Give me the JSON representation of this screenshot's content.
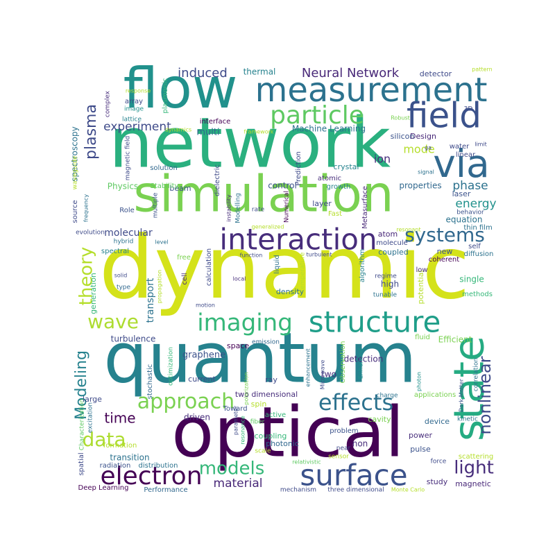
{
  "palette": {
    "dark_purple": "#440154",
    "indigo": "#3e4a89",
    "blue": "#31688e",
    "teal": "#26828e",
    "green": "#1f9e89",
    "bright_green": "#35b779",
    "lime": "#6ece58",
    "yellow_green": "#b5de2b",
    "yellow": "#fde725"
  },
  "words": [
    {
      "text": "dynamic",
      "color": "#d4e21a"
    },
    {
      "text": "network",
      "color": "#2ab07f"
    },
    {
      "text": "quantum",
      "color": "#26828e"
    },
    {
      "text": "optical",
      "color": "#440154"
    },
    {
      "text": "simulation",
      "color": "#7ad151"
    },
    {
      "text": "flow",
      "color": "#21918c"
    },
    {
      "text": "measurement",
      "color": "#2c728e"
    },
    {
      "text": "field",
      "color": "#3b528b"
    },
    {
      "text": "via",
      "color": "#31688e"
    },
    {
      "text": "particle",
      "color": "#5ec962"
    },
    {
      "text": "interaction",
      "color": "#472d7b"
    },
    {
      "text": "structure",
      "color": "#1f9e89"
    },
    {
      "text": "state",
      "color": "#25ab82"
    },
    {
      "text": "surface",
      "color": "#3b528b"
    },
    {
      "text": "imaging",
      "color": "#35b779"
    },
    {
      "text": "electron",
      "color": "#440154"
    },
    {
      "text": "effects",
      "color": "#2c728e"
    },
    {
      "text": "approach",
      "color": "#7ad151"
    },
    {
      "text": "wave",
      "color": "#addc30"
    },
    {
      "text": "theory",
      "color": "#b5de2b"
    },
    {
      "text": "data",
      "color": "#addc30"
    },
    {
      "text": "systems",
      "color": "#31688e"
    },
    {
      "text": "models",
      "color": "#35b779"
    },
    {
      "text": "light",
      "color": "#472d7b"
    },
    {
      "text": "nonlinear",
      "color": "#3e4a89"
    },
    {
      "text": "Modeling",
      "color": "#26828e"
    },
    {
      "text": "plasma",
      "color": "#3e4a89"
    },
    {
      "text": "time",
      "color": "#440154"
    },
    {
      "text": "Neural Network",
      "color": "#482878"
    },
    {
      "text": "induced",
      "color": "#3e4a89"
    },
    {
      "text": "phase",
      "color": "#2c728e"
    },
    {
      "text": "energy",
      "color": "#21918c"
    },
    {
      "text": "experiment",
      "color": "#3e4a89"
    },
    {
      "text": "material",
      "color": "#482878"
    },
    {
      "text": "mode",
      "color": "#b5de2b"
    },
    {
      "text": "ion",
      "color": "#472d7b"
    },
    {
      "text": "spectroscopy",
      "color": "#2c728e"
    },
    {
      "text": "molecular",
      "color": "#3e4a89"
    },
    {
      "text": "transport",
      "color": "#2c728e"
    },
    {
      "text": "turbulence",
      "color": "#3e4a89"
    },
    {
      "text": "graphene",
      "color": "#3b528b"
    },
    {
      "text": "detection",
      "color": "#472d7b"
    },
    {
      "text": "Efficient",
      "color": "#7ad151"
    },
    {
      "text": "multi",
      "color": "#31688e"
    },
    {
      "text": "thermal",
      "color": "#26828e"
    },
    {
      "text": "detector",
      "color": "#3e4a89"
    },
    {
      "text": "Machine Learning",
      "color": "#2c728e"
    },
    {
      "text": "Physics",
      "color": "#5ec962"
    },
    {
      "text": "Design",
      "color": "#482878"
    },
    {
      "text": "beam",
      "color": "#3b528b"
    },
    {
      "text": "control",
      "color": "#3b528b"
    },
    {
      "text": "properties",
      "color": "#31688e"
    },
    {
      "text": "equation",
      "color": "#2c728e"
    },
    {
      "text": "atom",
      "color": "#482878"
    },
    {
      "text": "single",
      "color": "#35b779"
    },
    {
      "text": "high",
      "color": "#3e4a89"
    },
    {
      "text": "potential",
      "color": "#b5de2b"
    },
    {
      "text": "generation",
      "color": "#35b779"
    },
    {
      "text": "new",
      "color": "#3b528b"
    },
    {
      "text": "two",
      "color": "#472d7b"
    },
    {
      "text": "spin",
      "color": "#b5de2b"
    },
    {
      "text": "transition",
      "color": "#2c728e"
    },
    {
      "text": "magnetic",
      "color": "#482878"
    },
    {
      "text": "study",
      "color": "#472d7b"
    },
    {
      "text": "current",
      "color": "#3e4a89"
    },
    {
      "text": "ray",
      "color": "#3e4a89"
    },
    {
      "text": "two dimensional",
      "color": "#472d7b"
    },
    {
      "text": "coupling",
      "color": "#35b779"
    },
    {
      "text": "photonic",
      "color": "#31688e"
    },
    {
      "text": "power",
      "color": "#472d7b"
    },
    {
      "text": "pulse",
      "color": "#3b528b"
    },
    {
      "text": "cavity",
      "color": "#7ad151"
    },
    {
      "text": "device",
      "color": "#31688e"
    },
    {
      "text": "driven",
      "color": "#472d7b"
    },
    {
      "text": "large",
      "color": "#3e4a89"
    },
    {
      "text": "non",
      "color": "#472d7b"
    },
    {
      "text": "coupled",
      "color": "#2c728e"
    },
    {
      "text": "coherent",
      "color": "#440154"
    },
    {
      "text": "diffusion",
      "color": "#2c728e"
    },
    {
      "text": "self",
      "color": "#3e4a89"
    },
    {
      "text": "methods",
      "color": "#35b779"
    },
    {
      "text": "density",
      "color": "#2c728e"
    },
    {
      "text": "space",
      "color": "#440154"
    },
    {
      "text": "fluid",
      "color": "#7ad151"
    },
    {
      "text": "laser",
      "color": "#3b528b"
    },
    {
      "text": "layer",
      "color": "#3e4a89"
    },
    {
      "text": "growth",
      "color": "#26828e"
    },
    {
      "text": "crystal",
      "color": "#26828e"
    },
    {
      "text": "silicon",
      "color": "#3b528b"
    },
    {
      "text": "water",
      "color": "#3e4a89"
    },
    {
      "text": "linear",
      "color": "#3e4a89"
    },
    {
      "text": "solution",
      "color": "#31688e"
    },
    {
      "text": "interface",
      "color": "#440154"
    },
    {
      "text": "array",
      "color": "#3e4a89"
    },
    {
      "text": "complex",
      "color": "#472d7b"
    },
    {
      "text": "lattice",
      "color": "#26828e"
    },
    {
      "text": "image",
      "color": "#21918c"
    },
    {
      "text": "Stability",
      "color": "#5ec962"
    },
    {
      "text": "Role",
      "color": "#3b528b"
    },
    {
      "text": "evolution",
      "color": "#3e4a89"
    },
    {
      "text": "source",
      "color": "#3e4a89"
    },
    {
      "text": "frequency",
      "color": "#2c728e"
    },
    {
      "text": "waveguide",
      "color": "#b5de2b"
    },
    {
      "text": "magnetic field",
      "color": "#3e4a89"
    },
    {
      "text": "plasmonic",
      "color": "#35b779"
    },
    {
      "text": "dielectric",
      "color": "#3e4a89"
    },
    {
      "text": "instability",
      "color": "#472d7b"
    },
    {
      "text": "Modelling",
      "color": "#2c728e"
    },
    {
      "text": "multiple",
      "color": "#3b528b"
    },
    {
      "text": "Numerical",
      "color": "#440154"
    },
    {
      "text": "Prediction",
      "color": "#3e4a89"
    },
    {
      "text": "Metasurface",
      "color": "#482878"
    },
    {
      "text": "atomic",
      "color": "#472d7b"
    },
    {
      "text": "Fast",
      "color": "#b5de2b"
    },
    {
      "text": "rate",
      "color": "#3e4a89"
    },
    {
      "text": "generalized",
      "color": "#b5de2b"
    },
    {
      "text": "molecule",
      "color": "#3e4a89"
    },
    {
      "text": "resonant",
      "color": "#b5de2b"
    },
    {
      "text": "behavior",
      "color": "#3b528b"
    },
    {
      "text": "thin film",
      "color": "#2c728e"
    },
    {
      "text": "free",
      "color": "#7ad151"
    },
    {
      "text": "hybrid",
      "color": "#2c728e"
    },
    {
      "text": "level",
      "color": "#2c728e"
    },
    {
      "text": "spectral",
      "color": "#26828e"
    },
    {
      "text": "solid",
      "color": "#3e4a89"
    },
    {
      "text": "type",
      "color": "#31688e"
    },
    {
      "text": "cell",
      "color": "#472d7b"
    },
    {
      "text": "calculation",
      "color": "#3e4a89"
    },
    {
      "text": "liquid",
      "color": "#2c728e"
    },
    {
      "text": "temperature",
      "color": "#b5de2b"
    },
    {
      "text": "algorithm",
      "color": "#26828e"
    },
    {
      "text": "function",
      "color": "#3e4a89"
    },
    {
      "text": "turbulent",
      "color": "#3e4a89"
    },
    {
      "text": "local",
      "color": "#472d7b"
    },
    {
      "text": "regime",
      "color": "#3e4a89"
    },
    {
      "text": "tunable",
      "color": "#2c728e"
    },
    {
      "text": "low",
      "color": "#472d7b"
    },
    {
      "text": "Observation",
      "color": "#7ad151"
    },
    {
      "text": "Enhanced",
      "color": "#21918c"
    },
    {
      "text": "enhancement",
      "color": "#2c728e"
    },
    {
      "text": "Microwave",
      "color": "#3e4a89"
    },
    {
      "text": "emission",
      "color": "#31688e"
    },
    {
      "text": "polarization",
      "color": "#7ad151"
    },
    {
      "text": "charge",
      "color": "#2c728e"
    },
    {
      "text": "Characterization",
      "color": "#5ec962"
    },
    {
      "text": "excitation",
      "color": "#2c728e"
    },
    {
      "text": "stochastic",
      "color": "#31688e"
    },
    {
      "text": "optimization",
      "color": "#35b779"
    },
    {
      "text": "propagation",
      "color": "#b5de2b"
    },
    {
      "text": "motion",
      "color": "#3e4a89"
    },
    {
      "text": "formation",
      "color": "#b5de2b"
    },
    {
      "text": "spatial",
      "color": "#3e4a89"
    },
    {
      "text": "radiation",
      "color": "#3b528b"
    },
    {
      "text": "distribution",
      "color": "#2c728e"
    },
    {
      "text": "Deep Learning",
      "color": "#440154"
    },
    {
      "text": "Performance",
      "color": "#31688e"
    },
    {
      "text": "mechanism",
      "color": "#3e4a89"
    },
    {
      "text": "three dimensional",
      "color": "#3e4a89"
    },
    {
      "text": "Monte Carlo",
      "color": "#b5de2b"
    },
    {
      "text": "ga",
      "color": "#3e4a89"
    },
    {
      "text": "scale",
      "color": "#b5de2b"
    },
    {
      "text": "resonance",
      "color": "#35b779"
    },
    {
      "text": "parameter",
      "color": "#3e4a89"
    },
    {
      "text": "fiber",
      "color": "#5ec962"
    },
    {
      "text": "active",
      "color": "#35b779"
    },
    {
      "text": "Toward",
      "color": "#3b528b"
    },
    {
      "text": "problem",
      "color": "#3b528b"
    },
    {
      "text": "near",
      "color": "#3e4a89"
    },
    {
      "text": "sensor",
      "color": "#b5de2b"
    },
    {
      "text": "relativistic",
      "color": "#5ec962"
    },
    {
      "text": "applications",
      "color": "#7ad151"
    },
    {
      "text": "kinetic",
      "color": "#2c728e"
    },
    {
      "text": "photon",
      "color": "#21918c"
    },
    {
      "text": "correlation",
      "color": "#2c728e"
    },
    {
      "text": "Dark Matter",
      "color": "#3b528b"
    },
    {
      "text": "scattering",
      "color": "#b5de2b"
    },
    {
      "text": "force",
      "color": "#3e4a89"
    },
    {
      "text": "Robust",
      "color": "#7ad151"
    },
    {
      "text": "limit",
      "color": "#3e4a89"
    },
    {
      "text": "signal",
      "color": "#2c728e"
    },
    {
      "text": "3D",
      "color": "#3e4a89"
    },
    {
      "text": "pattern",
      "color": "#b5de2b"
    },
    {
      "text": "framework",
      "color": "#b5de2b"
    },
    {
      "text": "dynamics",
      "color": "#b5de2b"
    },
    {
      "text": "response",
      "color": "#b5de2b"
    }
  ]
}
